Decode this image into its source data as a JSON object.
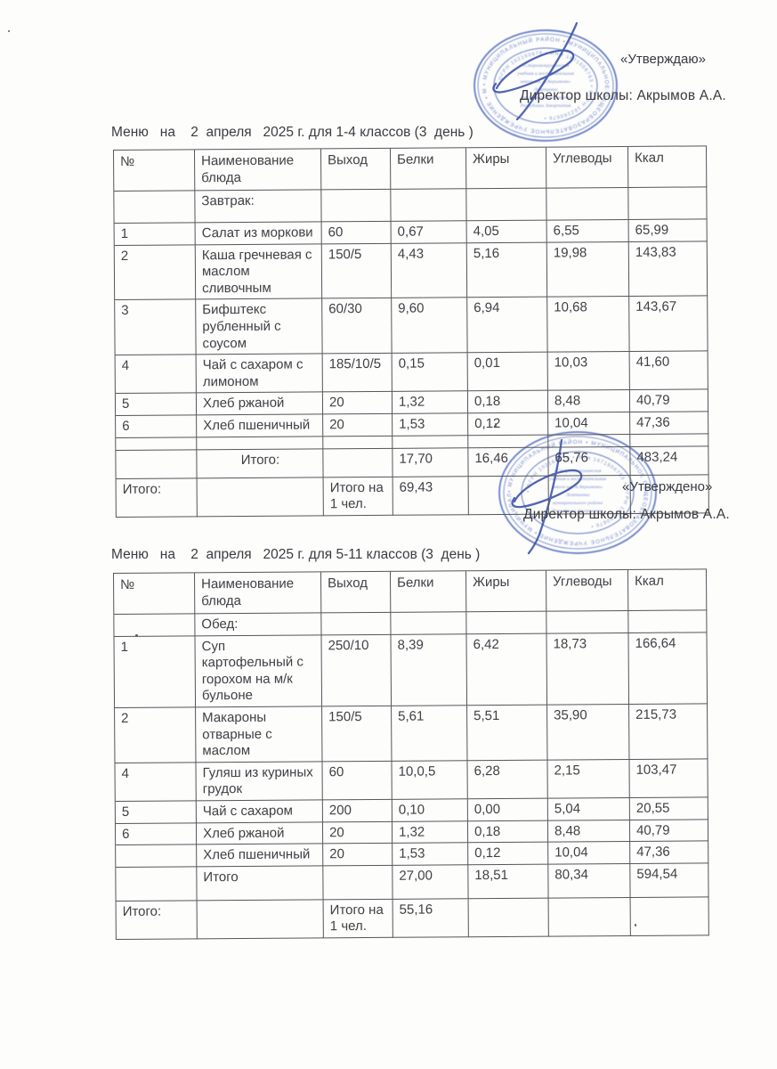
{
  "doc": {
    "colors": {
      "stamp_blue": "#4d68bf",
      "signature_blue": "#3a52a8",
      "ink": "#3f3f45",
      "border": "#55555b"
    },
    "approvals": [
      {
        "quote": "«Утверждаю»",
        "director": "Директор школы: Акрымов А.А."
      },
      {
        "quote": "«Утверждено»",
        "director": "Директор школы: Акрымов А.А."
      }
    ],
    "stamp": {
      "ring_outer": "• МУНИЦИПАЛЬНЫЙ РАЙОН • МУНИЦИПАЛЬНОЕ ОБЩЕОБРАЗОВАТЕЛЬНОЕ УЧРЕЖДЕНИЕ • МУНИЦИПАЛЬНЫЙ РАЙОН •",
      "ring_inner": "• ОГРН 102160676 • ИНН 1671606763 • ОГРН 102160676 •",
      "center_lines": [
        "«Старомокрушинская",
        "учебная и воспитательная",
        "школа им. А.Акрымова»",
        "Лемтиевка",
        "муниципального района",
        "Республики Закарпатия"
      ]
    },
    "menus": [
      {
        "title": "Меню   на    2  апреля   2025 г. для 1-4 классов (3  день )",
        "table": {
          "headers": [
            "№",
            "Наименование блюда",
            "Выход",
            "Белки",
            "Жиры",
            "Углеводы",
            "Ккал"
          ],
          "rows": [
            {
              "cells": [
                "",
                "Завтрак:",
                "",
                "",
                "",
                "",
                ""
              ],
              "minh": 36
            },
            {
              "cells": [
                "1",
                "Салат из моркови",
                "60",
                "0,67",
                "4,05",
                "6,55",
                "65,99"
              ],
              "minh": 22
            },
            {
              "cells": [
                "2",
                "Каша гречневая с маслом сливочным",
                "150/5",
                "4,43",
                "5,16",
                "19,98",
                "143,83"
              ],
              "minh": 38
            },
            {
              "cells": [
                "3",
                "Бифштекс рубленный с соусом",
                "60/30",
                "9,60",
                "6,94",
                "10,68",
                "143,67"
              ],
              "minh": 38
            },
            {
              "cells": [
                "4",
                "Чай с сахаром с лимоном",
                "185/10/5",
                "0,15",
                "0,01",
                "10,03",
                "41,60"
              ],
              "minh": 37
            },
            {
              "cells": [
                "5",
                "Хлеб ржаной",
                "20",
                "1,32",
                "0,18",
                "8,48",
                "40,79"
              ],
              "minh": 22
            },
            {
              "cells": [
                "6",
                "Хлеб пшеничный",
                "20",
                "1,53",
                "0,12",
                "10,04",
                "47,36"
              ],
              "minh": 22
            },
            {
              "cells": [
                "",
                "",
                "",
                "",
                "",
                "",
                ""
              ],
              "minh": 14
            },
            {
              "cells": [
                "",
                "Итого:",
                "",
                "17,70",
                "16,46",
                "65,76",
                "483,24"
              ],
              "minh": 32,
              "cls": "name-center"
            },
            {
              "cells": [
                "Итого:",
                "",
                "Итого на 1 чел.",
                "69,43",
                "",
                "",
                ""
              ],
              "minh": 42
            }
          ]
        }
      },
      {
        "title": "Меню   на    2  апреля   2025 г. для 5-11 классов (3  день )",
        "table": {
          "headers": [
            "№",
            "Наименование блюда",
            "Выход",
            "Белки",
            "Жиры",
            "Углеводы",
            "Ккал"
          ],
          "rows": [
            {
              "cells": [
                "",
                "Обед:",
                "",
                "",
                "",
                "",
                ""
              ],
              "minh": 22
            },
            {
              "cells": [
                "1",
                "Суп картофельный с горохом на м/к бульоне",
                "250/10",
                "8,39",
                "6,42",
                "18,73",
                "166,64"
              ],
              "minh": 76
            },
            {
              "cells": [
                "2",
                "Макароны отварные с маслом",
                "150/5",
                "5,61",
                "5,51",
                "35,90",
                "215,73"
              ],
              "minh": 56
            },
            {
              "cells": [
                "4",
                "Гуляш из куриных грудок",
                "60",
                "10,0,5",
                "6,28",
                "2,15",
                "103,47"
              ],
              "minh": 40
            },
            {
              "cells": [
                "5",
                "Чай с сахаром",
                "200",
                "0,10",
                "0,00",
                "5,04",
                "20,55"
              ],
              "minh": 21
            },
            {
              "cells": [
                "6",
                "Хлеб  ржаной",
                "20",
                "1,32",
                "0,18",
                "8,48",
                "40,79"
              ],
              "minh": 20
            },
            {
              "cells": [
                "",
                "Хлеб пшеничный",
                "20",
                "1,53",
                "0,12",
                "10,04",
                "47,36"
              ],
              "minh": 20
            },
            {
              "cells": [
                "",
                "Итого",
                "",
                "27,00",
                "18,51",
                "80,34",
                "594,54"
              ],
              "minh": 38
            },
            {
              "cells": [
                "Итого:",
                "",
                "Итого на 1 чел.",
                "55,16",
                "",
                "",
                ""
              ],
              "minh": 42
            }
          ]
        }
      }
    ]
  }
}
